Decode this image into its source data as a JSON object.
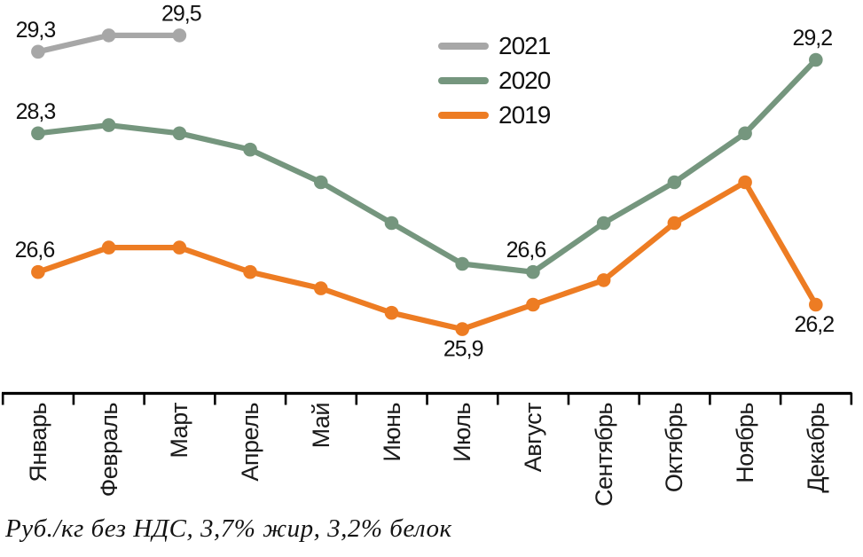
{
  "chart_data": {
    "type": "line",
    "title": "",
    "categories": [
      "Январь",
      "Февраль",
      "Март",
      "Апрель",
      "Май",
      "Июнь",
      "Июль",
      "Август",
      "Сентябрь",
      "Октябрь",
      "Ноябрь",
      "Декабрь"
    ],
    "series": [
      {
        "name": "2021",
        "color": "#a7a7a7",
        "values": [
          29.3,
          29.5,
          29.5,
          null,
          null,
          null,
          null,
          null,
          null,
          null,
          null,
          null
        ]
      },
      {
        "name": "2020",
        "color": "#75967e",
        "values": [
          28.3,
          28.4,
          28.3,
          28.1,
          27.7,
          27.2,
          26.7,
          26.6,
          27.2,
          27.7,
          28.3,
          29.2
        ]
      },
      {
        "name": "2019",
        "color": "#ed7c23",
        "values": [
          26.6,
          26.9,
          26.9,
          26.6,
          26.4,
          26.1,
          25.9,
          26.2,
          26.5,
          27.2,
          27.7,
          26.2
        ]
      }
    ],
    "point_labels": [
      {
        "series": 0,
        "point": 0,
        "text": "29,3",
        "position": "above",
        "dx": -3
      },
      {
        "series": 0,
        "point": 2,
        "text": "29,5",
        "position": "above",
        "dx": 2
      },
      {
        "series": 1,
        "point": 0,
        "text": "28,3",
        "position": "above",
        "dx": -3
      },
      {
        "series": 1,
        "point": 7,
        "text": "26,6",
        "position": "above",
        "dx": -8
      },
      {
        "series": 1,
        "point": 11,
        "text": "29,2",
        "position": "above",
        "dx": -4
      },
      {
        "series": 2,
        "point": 0,
        "text": "26,6",
        "position": "above",
        "dx": -4
      },
      {
        "series": 2,
        "point": 6,
        "text": "25,9",
        "position": "below",
        "dx": 1
      },
      {
        "series": 2,
        "point": 11,
        "text": "26,2",
        "position": "below",
        "dx": -2
      }
    ],
    "ylim": [
      25.1,
      29.9
    ],
    "grid": false,
    "legend_position": "top-center",
    "axis_color": "#000000"
  },
  "caption": "Руб./кг без НДС, 3,7% жир, 3,2% белок"
}
